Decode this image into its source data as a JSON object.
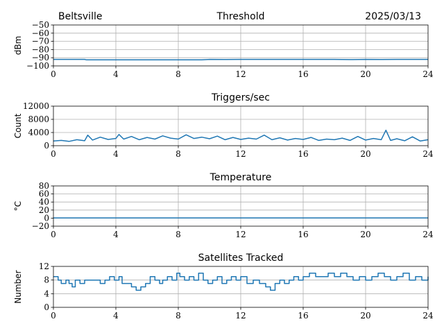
{
  "header": {
    "station": "Beltsville",
    "date": "2025/03/13"
  },
  "colors": {
    "series": "#1f77b4",
    "grid": "#b0b0b0",
    "axis": "#000000"
  },
  "chart_data": [
    {
      "type": "line",
      "title": "Threshold",
      "ylabel": "dBm",
      "xlim": [
        0,
        24
      ],
      "ylim": [
        -100,
        -50
      ],
      "xticks": [
        0,
        4,
        8,
        12,
        16,
        20,
        24
      ],
      "yticks": [
        -100,
        -90,
        -80,
        -70,
        -60,
        -50
      ],
      "ytick_labels": [
        "−100",
        "−90",
        "−80",
        "−70",
        "−60",
        "−50"
      ],
      "grid": true,
      "series": [
        {
          "x": [
            0,
            2,
            2.1,
            4,
            6,
            8,
            9.5,
            10,
            11,
            12,
            14,
            16,
            18,
            19,
            20,
            21,
            22,
            24
          ],
          "y": [
            -92,
            -92,
            -92.5,
            -92.5,
            -92.5,
            -92.5,
            -92.5,
            -92,
            -92.2,
            -92,
            -92,
            -92,
            -92,
            -92.3,
            -92,
            -92.2,
            -92,
            -92
          ]
        }
      ]
    },
    {
      "type": "line",
      "title": "Triggers/sec",
      "ylabel": "Count",
      "xlim": [
        0,
        24
      ],
      "ylim": [
        0,
        12000
      ],
      "xticks": [
        0,
        4,
        8,
        12,
        16,
        20,
        24
      ],
      "yticks": [
        0,
        4000,
        8000,
        12000
      ],
      "ytick_labels": [
        "0",
        "4000",
        "8000",
        "12000"
      ],
      "grid": true,
      "series": [
        {
          "x": [
            0,
            0.5,
            1,
            1.5,
            2,
            2.2,
            2.5,
            3,
            3.5,
            4,
            4.2,
            4.5,
            5,
            5.5,
            6,
            6.5,
            7,
            7.5,
            8,
            8.5,
            9,
            9.5,
            10,
            10.5,
            11,
            11.5,
            12,
            12.5,
            13,
            13.5,
            14,
            14.5,
            15,
            15.5,
            16,
            16.5,
            17,
            17.5,
            18,
            18.5,
            19,
            19.5,
            20,
            20.5,
            21,
            21.3,
            21.6,
            22,
            22.5,
            23,
            23.5,
            24
          ],
          "y": [
            1400,
            1600,
            1300,
            1800,
            1500,
            3200,
            1700,
            2600,
            1900,
            2200,
            3400,
            2000,
            2800,
            1800,
            2500,
            2000,
            3000,
            2300,
            2000,
            3300,
            2200,
            2600,
            2100,
            2900,
            1800,
            2500,
            1900,
            2300,
            2000,
            3200,
            1800,
            2400,
            1700,
            2200,
            1900,
            2500,
            1600,
            2000,
            1800,
            2300,
            1600,
            2800,
            1700,
            2200,
            1800,
            4700,
            1600,
            2100,
            1500,
            2700,
            1400,
            1800
          ]
        }
      ]
    },
    {
      "type": "line",
      "title": "Temperature",
      "ylabel": "°C",
      "xlim": [
        0,
        24
      ],
      "ylim": [
        -20,
        80
      ],
      "xticks": [
        0,
        4,
        8,
        12,
        16,
        20,
        24
      ],
      "yticks": [
        -20,
        0,
        20,
        40,
        60,
        80
      ],
      "ytick_labels": [
        "−20",
        "0",
        "20",
        "40",
        "60",
        "80"
      ],
      "grid": true,
      "series": [
        {
          "x": [
            0,
            24
          ],
          "y": [
            0.5,
            0.5
          ]
        }
      ]
    },
    {
      "type": "line",
      "title": "Satellites Tracked",
      "ylabel": "Number",
      "xlim": [
        0,
        24
      ],
      "ylim": [
        0,
        12
      ],
      "xticks": [
        0,
        4,
        8,
        12,
        16,
        20,
        24
      ],
      "yticks": [
        0,
        4,
        8,
        12
      ],
      "ytick_labels": [
        "0",
        "4",
        "8",
        "12"
      ],
      "grid": true,
      "step": true,
      "series": [
        {
          "x": [
            0,
            0.3,
            0.5,
            0.8,
            1.0,
            1.2,
            1.4,
            1.7,
            2.0,
            2.2,
            2.5,
            3.0,
            3.3,
            3.6,
            3.9,
            4.2,
            4.4,
            4.7,
            5.0,
            5.3,
            5.6,
            5.9,
            6.2,
            6.5,
            6.8,
            7.0,
            7.3,
            7.6,
            7.9,
            8.1,
            8.4,
            8.7,
            9.0,
            9.3,
            9.6,
            9.9,
            10.2,
            10.5,
            10.8,
            11.1,
            11.4,
            11.7,
            12.0,
            12.4,
            12.8,
            13.2,
            13.6,
            13.9,
            14.2,
            14.5,
            14.8,
            15.1,
            15.4,
            15.7,
            16.0,
            16.4,
            16.8,
            17.2,
            17.6,
            18.0,
            18.4,
            18.8,
            19.2,
            19.6,
            20.0,
            20.4,
            20.8,
            21.2,
            21.6,
            22.0,
            22.4,
            22.8,
            23.2,
            23.6,
            24.0
          ],
          "y": [
            9,
            8,
            7,
            8,
            7,
            6,
            8,
            7,
            8,
            8,
            8,
            7,
            8,
            9,
            8,
            9,
            7,
            7,
            6,
            5,
            6,
            7,
            9,
            8,
            7,
            8,
            9,
            8,
            10,
            9,
            8,
            9,
            8,
            10,
            8,
            7,
            8,
            9,
            7,
            8,
            9,
            8,
            9,
            7,
            8,
            7,
            6,
            5,
            7,
            8,
            7,
            8,
            9,
            8,
            9,
            10,
            9,
            9,
            10,
            9,
            10,
            9,
            8,
            9,
            8,
            9,
            10,
            9,
            8,
            9,
            10,
            8,
            9,
            8,
            9
          ]
        }
      ]
    }
  ]
}
